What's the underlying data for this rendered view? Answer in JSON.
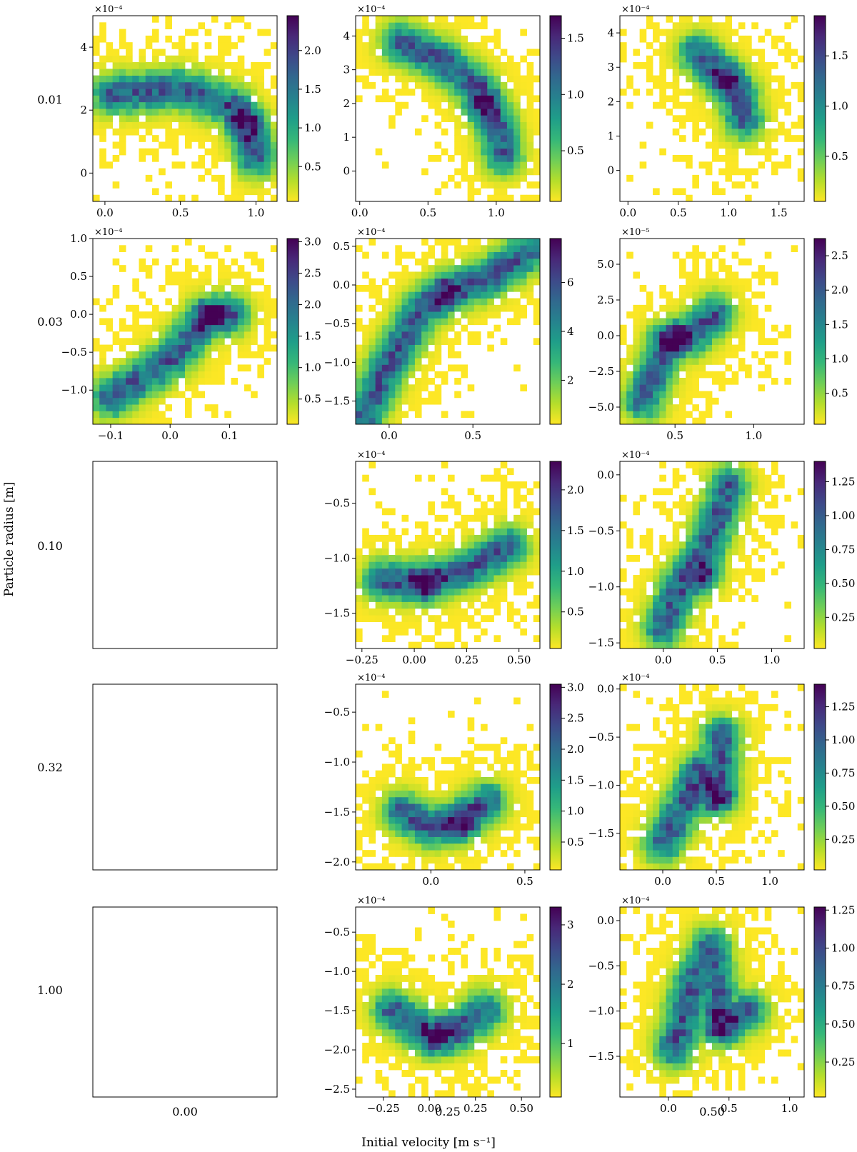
{
  "xlabel": "Initial velocity [m s$^{-1}$]",
  "ylabel": "Particle radius [m]",
  "xlabel_text": "Initial velocity [m s⁻¹]",
  "column_labels": [
    "0.00",
    "0.25",
    "0.50"
  ],
  "row_labels": [
    "0.01",
    "0.03",
    "0.10",
    "0.32",
    "1.00"
  ],
  "colormap": "viridis_r",
  "colormap_stops": [
    "#fde725",
    "#b5de2b",
    "#6ece58",
    "#35b779",
    "#1f9e89",
    "#26828e",
    "#31688e",
    "#3e4989",
    "#482878",
    "#440154"
  ],
  "chart_data": [
    {
      "type": "heatmap",
      "row": 0,
      "col": 0,
      "empty": false,
      "y_scale_label": "×10⁻⁴",
      "xlim": [
        -0.08,
        1.14
      ],
      "ylim": [
        -0.9,
        5.0
      ],
      "xticks": [
        0,
        0.5,
        1.0
      ],
      "xtick_labels": [
        "0.0",
        "0.5",
        "1.0"
      ],
      "yticks": [
        0,
        2,
        4
      ],
      "ytick_labels": [
        "0",
        "2",
        "4"
      ],
      "clim": [
        0.05,
        2.45
      ],
      "cticks": [
        0.5,
        1.0,
        1.5,
        2.0
      ],
      "ctick_labels": [
        "0.5",
        "1.0",
        "1.5",
        "2.0"
      ],
      "ridge": [
        [
          0.05,
          2.5
        ],
        [
          0.5,
          2.7
        ],
        [
          0.85,
          2.1
        ],
        [
          0.95,
          1.4
        ],
        [
          1.0,
          0.5
        ]
      ],
      "peak": [
        0.93,
        1.6
      ]
    },
    {
      "type": "heatmap",
      "row": 0,
      "col": 1,
      "empty": false,
      "y_scale_label": "×10⁻⁴",
      "xlim": [
        -0.03,
        1.32
      ],
      "ylim": [
        -0.9,
        4.6
      ],
      "xticks": [
        0,
        0.5,
        1.0
      ],
      "xtick_labels": [
        "0.0",
        "0.5",
        "1.0"
      ],
      "yticks": [
        0,
        1,
        2,
        3,
        4
      ],
      "ytick_labels": [
        "0",
        "1",
        "2",
        "3",
        "4"
      ],
      "clim": [
        0.05,
        1.7
      ],
      "cticks": [
        0.5,
        1.0,
        1.5
      ],
      "ctick_labels": [
        "0.5",
        "1.0",
        "1.5"
      ],
      "ridge": [
        [
          0.3,
          3.8
        ],
        [
          0.6,
          3.3
        ],
        [
          0.85,
          2.5
        ],
        [
          1.0,
          1.4
        ],
        [
          1.05,
          0.5
        ]
      ],
      "peak": [
        0.92,
        2.0
      ]
    },
    {
      "type": "heatmap",
      "row": 0,
      "col": 2,
      "empty": false,
      "y_scale_label": "×10⁻⁴",
      "xlim": [
        -0.08,
        1.75
      ],
      "ylim": [
        -0.9,
        4.5
      ],
      "xticks": [
        0,
        0.5,
        1.0,
        1.5
      ],
      "xtick_labels": [
        "0.0",
        "0.5",
        "1.0",
        "1.5"
      ],
      "yticks": [
        0,
        1,
        2,
        3,
        4
      ],
      "ytick_labels": [
        "0",
        "1",
        "2",
        "3",
        "4"
      ],
      "clim": [
        0.05,
        1.9
      ],
      "cticks": [
        0.5,
        1.0,
        1.5
      ],
      "ctick_labels": [
        "0.5",
        "1.0",
        "1.5"
      ],
      "ridge": [
        [
          0.7,
          3.4
        ],
        [
          0.95,
          2.7
        ],
        [
          1.1,
          2.2
        ],
        [
          1.15,
          1.5
        ]
      ],
      "peak": [
        1.0,
        2.6
      ]
    },
    {
      "type": "heatmap",
      "row": 1,
      "col": 0,
      "empty": false,
      "y_scale_label": "×10⁻⁴",
      "xlim": [
        -0.13,
        0.18
      ],
      "ylim": [
        -1.45,
        1.0
      ],
      "xticks": [
        -0.1,
        0.0,
        0.1
      ],
      "xtick_labels": [
        "−0.1",
        "0.0",
        "0.1"
      ],
      "yticks": [
        -1.0,
        -0.5,
        0.0,
        0.5,
        1.0
      ],
      "ytick_labels": [
        "−1.0",
        "−0.5",
        "0.0",
        "0.5",
        "1.0"
      ],
      "clim": [
        0.1,
        3.05
      ],
      "cticks": [
        0.5,
        1.0,
        1.5,
        2.0,
        2.5,
        3.0
      ],
      "ctick_labels": [
        "0.5",
        "1.0",
        "1.5",
        "2.0",
        "2.5",
        "3.0"
      ],
      "ridge": [
        [
          -0.1,
          -1.1
        ],
        [
          0.0,
          -0.6
        ],
        [
          0.06,
          -0.05
        ],
        [
          0.1,
          0.0
        ]
      ],
      "peak": [
        0.07,
        0.0
      ]
    },
    {
      "type": "heatmap",
      "row": 1,
      "col": 1,
      "empty": false,
      "y_scale_label": "×10⁻⁴",
      "xlim": [
        -0.2,
        0.9
      ],
      "ylim": [
        -1.8,
        0.6
      ],
      "xticks": [
        0.0,
        0.5
      ],
      "xtick_labels": [
        "0.0",
        "0.5"
      ],
      "yticks": [
        -1.5,
        -1.0,
        -0.5,
        0.0,
        0.5
      ],
      "ytick_labels": [
        "−1.5",
        "−1.0",
        "−0.5",
        "0.0",
        "0.5"
      ],
      "clim": [
        0.2,
        7.8
      ],
      "cticks": [
        2,
        4,
        6
      ],
      "ctick_labels": [
        "2",
        "4",
        "6"
      ],
      "ridge": [
        [
          -0.15,
          -1.7
        ],
        [
          0.0,
          -1.0
        ],
        [
          0.2,
          -0.3
        ],
        [
          0.35,
          -0.1
        ],
        [
          0.6,
          0.1
        ],
        [
          0.85,
          0.45
        ]
      ],
      "peak": [
        0.33,
        -0.1
      ]
    },
    {
      "type": "heatmap",
      "row": 1,
      "col": 2,
      "empty": false,
      "y_scale_label": "×10⁻⁵",
      "xlim": [
        0.15,
        1.32
      ],
      "ylim": [
        -6.2,
        6.8
      ],
      "xticks": [
        0.5,
        1.0
      ],
      "xtick_labels": [
        "0.5",
        "1.0"
      ],
      "yticks": [
        -5.0,
        -2.5,
        0.0,
        2.5,
        5.0
      ],
      "ytick_labels": [
        "−5.0",
        "−2.5",
        "0.0",
        "2.5",
        "5.0"
      ],
      "clim": [
        0.05,
        2.75
      ],
      "cticks": [
        0.5,
        1.0,
        1.5,
        2.0,
        2.5
      ],
      "ctick_labels": [
        "0.5",
        "1.0",
        "1.5",
        "2.0",
        "2.5"
      ],
      "ridge": [
        [
          0.3,
          -4.5
        ],
        [
          0.45,
          -0.5
        ],
        [
          0.6,
          0.0
        ],
        [
          0.75,
          1.5
        ]
      ],
      "peak": [
        0.5,
        -0.2
      ]
    },
    {
      "type": "heatmap",
      "row": 2,
      "col": 0,
      "empty": true
    },
    {
      "type": "heatmap",
      "row": 2,
      "col": 1,
      "empty": false,
      "y_scale_label": "×10⁻⁴",
      "xlim": [
        -0.28,
        0.6
      ],
      "ylim": [
        -1.82,
        -0.12
      ],
      "xticks": [
        -0.25,
        0.0,
        0.25,
        0.5
      ],
      "xtick_labels": [
        "−0.25",
        "0.00",
        "0.25",
        "0.50"
      ],
      "yticks": [
        -1.5,
        -1.0,
        -0.5
      ],
      "ytick_labels": [
        "−1.5",
        "−1.0",
        "−0.5"
      ],
      "clim": [
        0.05,
        2.35
      ],
      "cticks": [
        0.5,
        1.0,
        1.5,
        2.0
      ],
      "ctick_labels": [
        "0.5",
        "1.0",
        "1.5",
        "2.0"
      ],
      "ridge": [
        [
          -0.15,
          -1.2
        ],
        [
          0.05,
          -1.22
        ],
        [
          0.25,
          -1.1
        ],
        [
          0.45,
          -0.9
        ]
      ],
      "peak": [
        0.05,
        -1.22
      ]
    },
    {
      "type": "heatmap",
      "row": 2,
      "col": 2,
      "empty": false,
      "y_scale_label": "×10⁻⁴",
      "xlim": [
        -0.4,
        1.3
      ],
      "ylim": [
        -1.55,
        0.12
      ],
      "xticks": [
        0.0,
        0.5,
        1.0
      ],
      "xtick_labels": [
        "0.0",
        "0.5",
        "1.0"
      ],
      "yticks": [
        -1.5,
        -1.0,
        -0.5,
        0.0
      ],
      "ytick_labels": [
        "−1.5",
        "−1.0",
        "−0.5",
        "0.0"
      ],
      "clim": [
        0.02,
        1.4
      ],
      "cticks": [
        0.25,
        0.5,
        0.75,
        1.0,
        1.25
      ],
      "ctick_labels": [
        "0.25",
        "0.50",
        "0.75",
        "1.00",
        "1.25"
      ],
      "ridge": [
        [
          0.0,
          -1.35
        ],
        [
          0.15,
          -1.0
        ],
        [
          0.35,
          -0.75
        ],
        [
          0.5,
          -0.4
        ],
        [
          0.6,
          -0.1
        ]
      ],
      "peak": [
        0.38,
        -0.92
      ]
    },
    {
      "type": "heatmap",
      "row": 3,
      "col": 0,
      "empty": true
    },
    {
      "type": "heatmap",
      "row": 3,
      "col": 1,
      "empty": false,
      "y_scale_label": "×10⁻⁴",
      "xlim": [
        -0.4,
        0.58
      ],
      "ylim": [
        -2.08,
        -0.22
      ],
      "xticks": [
        0.0,
        0.5
      ],
      "xtick_labels": [
        "0.0",
        "0.5"
      ],
      "yticks": [
        -2.0,
        -1.5,
        -1.0,
        -0.5
      ],
      "ytick_labels": [
        "−2.0",
        "−1.5",
        "−1.0",
        "−0.5"
      ],
      "clim": [
        0.05,
        3.05
      ],
      "cticks": [
        0.5,
        1.0,
        1.5,
        2.0,
        2.5,
        3.0
      ],
      "ctick_labels": [
        "0.5",
        "1.0",
        "1.5",
        "2.0",
        "2.5",
        "3.0"
      ],
      "ridge": [
        [
          -0.15,
          -1.5
        ],
        [
          0.0,
          -1.65
        ],
        [
          0.15,
          -1.6
        ],
        [
          0.3,
          -1.4
        ]
      ],
      "peak": [
        0.15,
        -1.6
      ]
    },
    {
      "type": "heatmap",
      "row": 3,
      "col": 2,
      "empty": false,
      "y_scale_label": "×10⁻⁴",
      "xlim": [
        -0.4,
        1.32
      ],
      "ylim": [
        -1.88,
        0.05
      ],
      "xticks": [
        0.0,
        0.5,
        1.0
      ],
      "xtick_labels": [
        "0.0",
        "0.5",
        "1.0"
      ],
      "yticks": [
        -1.5,
        -1.0,
        -0.5,
        0.0
      ],
      "ytick_labels": [
        "−1.5",
        "−1.0",
        "−0.5",
        "0.0"
      ],
      "clim": [
        0.02,
        1.42
      ],
      "cticks": [
        0.25,
        0.5,
        0.75,
        1.0,
        1.25
      ],
      "ctick_labels": [
        "0.25",
        "0.50",
        "0.75",
        "1.00",
        "1.25"
      ],
      "ridge": [
        [
          0.0,
          -1.6
        ],
        [
          0.2,
          -1.2
        ],
        [
          0.35,
          -0.85
        ],
        [
          0.5,
          -1.1
        ],
        [
          0.55,
          -0.5
        ]
      ],
      "peak": [
        0.5,
        -1.1
      ]
    },
    {
      "type": "heatmap",
      "row": 4,
      "col": 0,
      "empty": true
    },
    {
      "type": "heatmap",
      "row": 4,
      "col": 1,
      "empty": false,
      "y_scale_label": "×10⁻⁴",
      "xlim": [
        -0.4,
        0.6
      ],
      "ylim": [
        -2.6,
        -0.18
      ],
      "xticks": [
        -0.25,
        0.0,
        0.25,
        0.5
      ],
      "xtick_labels": [
        "−0.25",
        "0.00",
        "0.25",
        "0.50"
      ],
      "yticks": [
        -2.5,
        -2.0,
        -1.5,
        -1.0,
        -0.5
      ],
      "ytick_labels": [
        "−2.5",
        "−2.0",
        "−1.5",
        "−1.0",
        "−0.5"
      ],
      "clim": [
        0.1,
        3.3
      ],
      "cticks": [
        1,
        2,
        3
      ],
      "ctick_labels": [
        "1",
        "2",
        "3"
      ],
      "ridge": [
        [
          -0.2,
          -1.5
        ],
        [
          0.0,
          -1.8
        ],
        [
          0.15,
          -1.75
        ],
        [
          0.3,
          -1.5
        ]
      ],
      "peak": [
        0.05,
        -1.83
      ]
    },
    {
      "type": "heatmap",
      "row": 4,
      "col": 2,
      "empty": false,
      "y_scale_label": "×10⁻⁴",
      "xlim": [
        -0.4,
        1.12
      ],
      "ylim": [
        -1.95,
        0.15
      ],
      "xticks": [
        0.0,
        0.5,
        1.0
      ],
      "xtick_labels": [
        "0.0",
        "0.5",
        "1.0"
      ],
      "yticks": [
        -1.5,
        -1.0,
        -0.5,
        0.0
      ],
      "ytick_labels": [
        "−1.5",
        "−1.0",
        "−0.5",
        "0.0"
      ],
      "clim": [
        0.02,
        1.27
      ],
      "cticks": [
        0.25,
        0.5,
        0.75,
        1.0,
        1.25
      ],
      "ctick_labels": [
        "0.25",
        "0.50",
        "0.75",
        "1.00",
        "1.25"
      ],
      "ridge": [
        [
          0.05,
          -1.4
        ],
        [
          0.2,
          -0.7
        ],
        [
          0.35,
          -0.3
        ],
        [
          0.45,
          -1.15
        ],
        [
          0.65,
          -1.0
        ]
      ],
      "peak": [
        0.42,
        -1.15
      ]
    }
  ]
}
